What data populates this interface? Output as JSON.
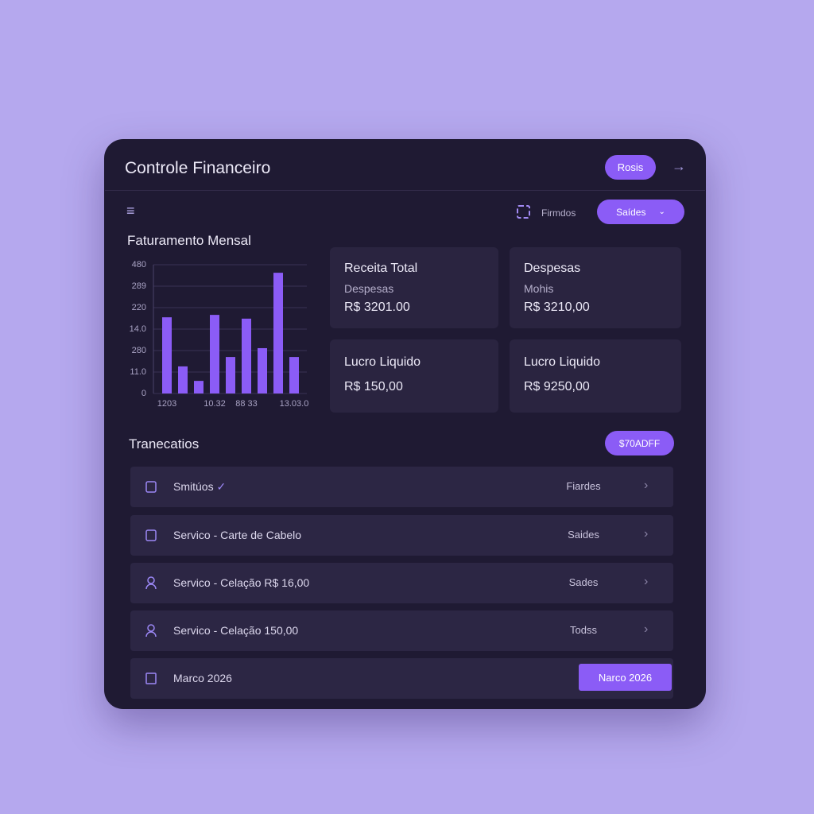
{
  "header": {
    "title": "Controle Financeiro",
    "button": "Rosis"
  },
  "toolbar": {
    "filter_label": "Firmdos",
    "dropdown": "Saídes"
  },
  "chart": {
    "type": "bar",
    "title": "Faturamento Mensal",
    "categories": [
      "1203",
      null,
      null,
      "10.32",
      null,
      "88 33",
      null,
      null,
      "13.03.0"
    ],
    "values": [
      284,
      101,
      47,
      293,
      136,
      279,
      169,
      450,
      136
    ],
    "color": "#8b5cf6",
    "ylim": [
      0,
      480
    ],
    "yticks": [
      0,
      {
        "value": 80,
        "label": "11.0"
      },
      {
        "value": 160,
        "label": "280"
      },
      {
        "value": 240,
        "label": "14.0"
      },
      {
        "value": 320,
        "label": "220"
      },
      {
        "value": 400,
        "label": "289"
      },
      480
    ],
    "grid": true
  },
  "cards": [
    {
      "title": "Receita Total",
      "subtitle": "Despesas",
      "value": "R$ 3201.00"
    },
    {
      "title": "Despesas",
      "subtitle": "Mohis",
      "value": "R$ 3210,00"
    },
    {
      "title": "Lucro Liquido",
      "value": "R$ 150,00"
    },
    {
      "title": "Lucro Liquido",
      "value": "R$ 9250,00"
    }
  ],
  "transactions": {
    "title": "Tranecatios",
    "button": "$70ADFF",
    "rows": [
      {
        "label": "Smitúos",
        "status": "Fiardes"
      },
      {
        "label": "Servico - Carte de Cabelo",
        "status": "Saides"
      },
      {
        "label": "Servico - Celação R$ 16,00",
        "status": "Sades"
      },
      {
        "label": "Servico - Celação 150,00",
        "status": "Todss"
      },
      {
        "label": "Marco 2026",
        "button": "Narco 2026"
      }
    ]
  }
}
